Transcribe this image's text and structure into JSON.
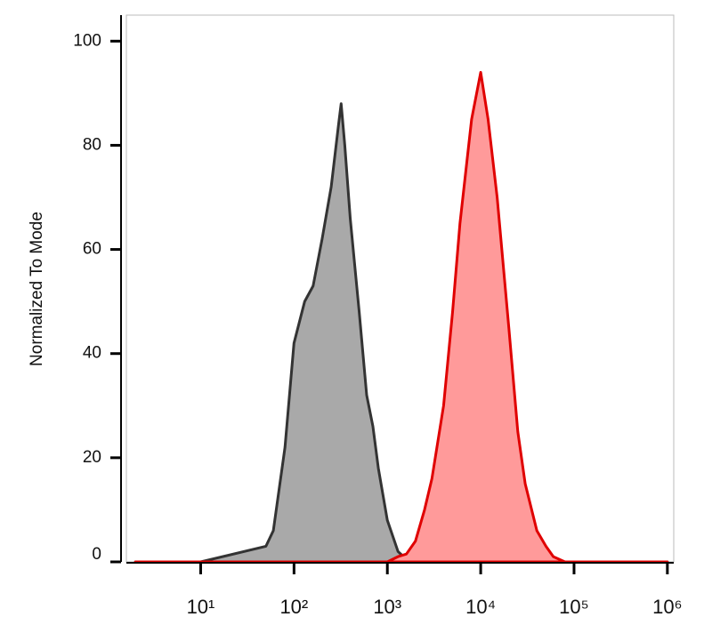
{
  "chart_data": {
    "type": "area",
    "y_label": "Normalized To Mode",
    "xscale": "log",
    "x": [
      2,
      10,
      50,
      60,
      80,
      100,
      130,
      160,
      200,
      250,
      300,
      320,
      350,
      400,
      500,
      600,
      700,
      800,
      1000,
      1300,
      1600,
      2000,
      2500,
      3000,
      4000,
      5000,
      6000,
      8000,
      10000,
      12000,
      15000,
      20000,
      25000,
      30000,
      40000,
      50000,
      60000,
      80000,
      100000,
      1000000
    ],
    "series": [
      {
        "color": "#333333",
        "fill": "#a9a9a9",
        "values": [
          0,
          0,
          3,
          6,
          22,
          42,
          50,
          53,
          62,
          72,
          84,
          88,
          80,
          66,
          48,
          32,
          26,
          18,
          8,
          2,
          0.5,
          0,
          0,
          0,
          0,
          0,
          0,
          0,
          0,
          0,
          0,
          0,
          0,
          0,
          0,
          0,
          0,
          0,
          0,
          0
        ]
      },
      {
        "color": "#e00000",
        "fill": "#ff9a9a",
        "values": [
          0,
          0,
          0,
          0,
          0,
          0,
          0,
          0,
          0,
          0,
          0,
          0,
          0,
          0,
          0,
          0,
          0,
          0,
          0,
          1,
          1.5,
          4,
          10,
          16,
          30,
          48,
          65,
          85,
          94,
          85,
          70,
          45,
          25,
          15,
          6,
          3,
          1,
          0,
          0,
          0
        ]
      }
    ],
    "xlim": [
      1.6,
      1170000
    ],
    "ylim": [
      0,
      105
    ],
    "yticks": [
      0,
      20,
      40,
      60,
      80,
      100
    ],
    "xticks": [
      {
        "value": 10,
        "label": "10¹"
      },
      {
        "value": 100,
        "label": "10²"
      },
      {
        "value": 1000,
        "label": "10³"
      },
      {
        "value": 10000,
        "label": "10⁴"
      },
      {
        "value": 100000,
        "label": "10⁵"
      },
      {
        "value": 1000000,
        "label": "10⁶"
      }
    ]
  }
}
